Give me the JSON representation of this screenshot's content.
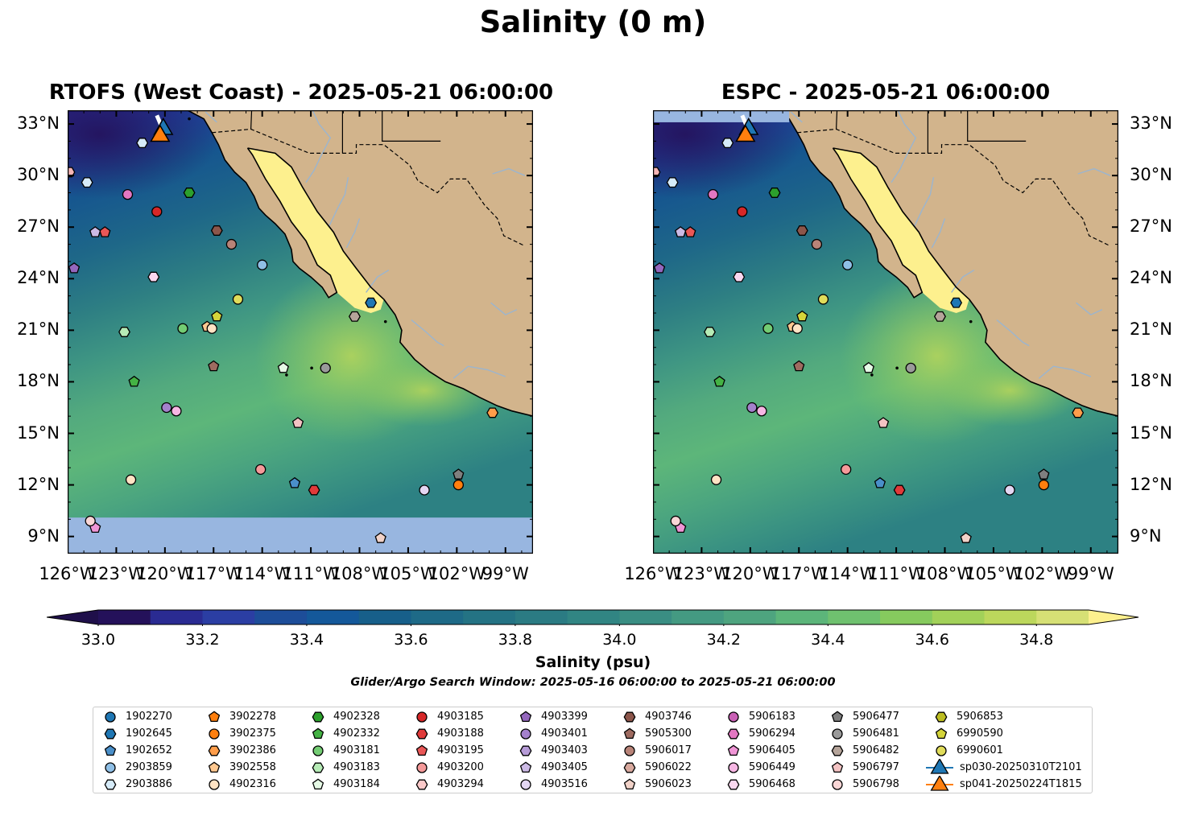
{
  "suptitle": "Salinity (0 m)",
  "maps": [
    {
      "title": "RTOFS (West Coast) - 2025-05-21 06:00:00",
      "model": "rtofs"
    },
    {
      "title": "ESPC - 2025-05-21 06:00:00",
      "model": "espc"
    }
  ],
  "lon_ticks": [
    "126°W",
    "123°W",
    "120°W",
    "117°W",
    "114°W",
    "111°W",
    "108°W",
    "105°W",
    "102°W",
    "99°W"
  ],
  "lat_ticks": [
    "33°N",
    "30°N",
    "27°N",
    "24°N",
    "21°N",
    "18°N",
    "15°N",
    "12°N",
    "9°N"
  ],
  "extent": {
    "lon": [
      -126,
      -97.3
    ],
    "lat": [
      8,
      33.8
    ]
  },
  "colorbar": {
    "label": "Salinity (psu)",
    "range": [
      33.0,
      34.9
    ],
    "ticks": [
      "33.0",
      "33.2",
      "33.4",
      "33.6",
      "33.8",
      "34.0",
      "34.2",
      "34.4",
      "34.6",
      "34.8"
    ],
    "colors": [
      "#24115a",
      "#2a2b92",
      "#2b3ea3",
      "#1d4d99",
      "#14589a",
      "#175f8a",
      "#1e6a87",
      "#247384",
      "#2b7b83",
      "#318583",
      "#3a8e83",
      "#449a82",
      "#4ea47f",
      "#5cb57a",
      "#6fc16f",
      "#86ca5e",
      "#a2d159",
      "#bcd75c",
      "#d6e075"
    ],
    "under": "#1f0f4a",
    "over": "#fdf08e"
  },
  "colors": {
    "land": "#d2b48c",
    "ocean_nodata": "#98b6e0",
    "gulf": "#fdf08e",
    "river": "#9bb5cf"
  },
  "search_window": "Glider/Argo Search Window: 2025-05-16 06:00:00 to 2025-05-21 06:00:00",
  "floats": [
    {
      "id": "1902270",
      "marker": "circle",
      "color": "#1f77b4",
      "lon": null,
      "lat": null
    },
    {
      "id": "1902645",
      "marker": "hexagon",
      "color": "#1f77b4",
      "lon": -107.3,
      "lat": 22.6
    },
    {
      "id": "1902652",
      "marker": "pentagon",
      "color": "#4a8fc9",
      "lon": -112.0,
      "lat": 12.1
    },
    {
      "id": "2903859",
      "marker": "circle",
      "color": "#8fbfe6",
      "lon": -114.0,
      "lat": 24.8
    },
    {
      "id": "2903886",
      "marker": "hexagon",
      "color": "#d6ebf9",
      "lon": -121.4,
      "lat": 31.9
    },
    {
      "id": "3902278",
      "marker": "pentagon",
      "color": "#ff7f0e",
      "lon": null,
      "lat": null
    },
    {
      "id": "3902375",
      "marker": "circle",
      "color": "#ff7f0e",
      "lon": -101.9,
      "lat": 12.0
    },
    {
      "id": "3902386",
      "marker": "hexagon",
      "color": "#ff9d4a",
      "lon": -99.8,
      "lat": 16.2
    },
    {
      "id": "3902558",
      "marker": "pentagon",
      "color": "#ffc890",
      "lon": -117.4,
      "lat": 21.2
    },
    {
      "id": "4902316",
      "marker": "circle",
      "color": "#ffe3c4",
      "lon": -122.1,
      "lat": 12.3
    },
    {
      "id": "4902328",
      "marker": "hexagon",
      "color": "#2ca02c",
      "lon": -118.5,
      "lat": 29.0
    },
    {
      "id": "4902332",
      "marker": "pentagon",
      "color": "#44b244",
      "lon": -121.9,
      "lat": 18.0
    },
    {
      "id": "4903181",
      "marker": "circle",
      "color": "#73cc73",
      "lon": -118.9,
      "lat": 21.1
    },
    {
      "id": "4903183",
      "marker": "hexagon",
      "color": "#b6ebb6",
      "lon": -122.5,
      "lat": 20.9
    },
    {
      "id": "4903184",
      "marker": "pentagon",
      "color": "#e6fae6",
      "lon": -112.7,
      "lat": 18.8
    },
    {
      "id": "4903185",
      "marker": "circle",
      "color": "#d62728",
      "lon": -120.5,
      "lat": 27.9
    },
    {
      "id": "4903188",
      "marker": "hexagon",
      "color": "#e03a3a",
      "lon": -110.8,
      "lat": 11.7
    },
    {
      "id": "4903195",
      "marker": "pentagon",
      "color": "#ea5757",
      "lon": -123.7,
      "lat": 26.7
    },
    {
      "id": "4903200",
      "marker": "circle",
      "color": "#f59a9a",
      "lon": -114.1,
      "lat": 12.9
    },
    {
      "id": "4903294",
      "marker": "hexagon",
      "color": "#fbc9c9",
      "lon": null,
      "lat": null
    },
    {
      "id": "4903399",
      "marker": "pentagon",
      "color": "#9467bd",
      "lon": -125.6,
      "lat": 24.6
    },
    {
      "id": "4903401",
      "marker": "circle",
      "color": "#a481cc",
      "lon": -119.9,
      "lat": 16.5
    },
    {
      "id": "4903403",
      "marker": "hexagon",
      "color": "#b69bd7",
      "lon": null,
      "lat": null
    },
    {
      "id": "4903405",
      "marker": "pentagon",
      "color": "#ccbae5",
      "lon": -124.3,
      "lat": 26.7
    },
    {
      "id": "4903516",
      "marker": "circle",
      "color": "#e3d6f2",
      "lon": -104.0,
      "lat": 11.7
    },
    {
      "id": "4903746",
      "marker": "hexagon",
      "color": "#8c564b",
      "lon": -116.8,
      "lat": 26.8
    },
    {
      "id": "5905300",
      "marker": "pentagon",
      "color": "#9e6b60",
      "lon": -117.0,
      "lat": 18.9
    },
    {
      "id": "5906017",
      "marker": "circle",
      "color": "#b88378",
      "lon": -115.9,
      "lat": 26.0
    },
    {
      "id": "5906022",
      "marker": "hexagon",
      "color": "#d8a99e",
      "lon": null,
      "lat": null
    },
    {
      "id": "5906023",
      "marker": "pentagon",
      "color": "#f1d2c8",
      "lon": -106.7,
      "lat": 8.9
    },
    {
      "id": "5906183",
      "marker": "circle",
      "color": "#c960b5",
      "lon": null,
      "lat": null
    },
    {
      "id": "5906294",
      "marker": "hexagon",
      "color": "#e377c2",
      "lon": null,
      "lat": null
    },
    {
      "id": "5906405",
      "marker": "pentagon",
      "color": "#f095d6",
      "lon": -124.3,
      "lat": 9.5
    },
    {
      "id": "5906449",
      "marker": "circle",
      "color": "#f6b6e3",
      "lon": -119.3,
      "lat": 16.3
    },
    {
      "id": "5906468",
      "marker": "hexagon",
      "color": "#fad7ef",
      "lon": -120.7,
      "lat": 24.1
    },
    {
      "id": "5906477",
      "marker": "pentagon",
      "color": "#7f7f7f",
      "lon": -101.9,
      "lat": 12.6
    },
    {
      "id": "5906481",
      "marker": "circle",
      "color": "#9a9a9a",
      "lon": -110.1,
      "lat": 18.8
    },
    {
      "id": "5906482",
      "marker": "hexagon",
      "color": "#b5a49a",
      "lon": -108.3,
      "lat": 21.8
    },
    {
      "id": "5906797",
      "marker": "pentagon",
      "color": "#f3c3c3",
      "lon": -111.8,
      "lat": 15.6
    },
    {
      "id": "5906798",
      "marker": "circle",
      "color": "#f9d6d6",
      "lon": -124.6,
      "lat": 9.9
    },
    {
      "id": "5906853",
      "marker": "hexagon",
      "color": "#bcbd22",
      "lon": null,
      "lat": null
    },
    {
      "id": "6990590",
      "marker": "pentagon",
      "color": "#d4d43a",
      "lon": -116.8,
      "lat": 21.8
    },
    {
      "id": "6990601",
      "marker": "circle",
      "color": "#e0dc5a",
      "lon": -115.5,
      "lat": 22.8
    }
  ],
  "extra_points": [
    {
      "marker": "circle",
      "color": "#e377c2",
      "lon": -122.3,
      "lat": 28.9
    },
    {
      "marker": "circle",
      "color": "#ffe3c4",
      "lon": -117.1,
      "lat": 21.1
    },
    {
      "marker": "hexagon",
      "color": "#f5b5b5",
      "lon": -125.9,
      "lat": 30.2
    },
    {
      "marker": "hexagon",
      "color": "#d6ebf9",
      "lon": -124.8,
      "lat": 29.6
    }
  ],
  "gliders": [
    {
      "id": "sp030-20250310T2101",
      "marker": "triangle",
      "color": "#1f77b4",
      "lon": -120.1,
      "lat": 32.7
    },
    {
      "id": "sp041-20250224T1815",
      "marker": "triangle",
      "color": "#ff7f0e",
      "lon": -120.3,
      "lat": 32.3
    }
  ]
}
